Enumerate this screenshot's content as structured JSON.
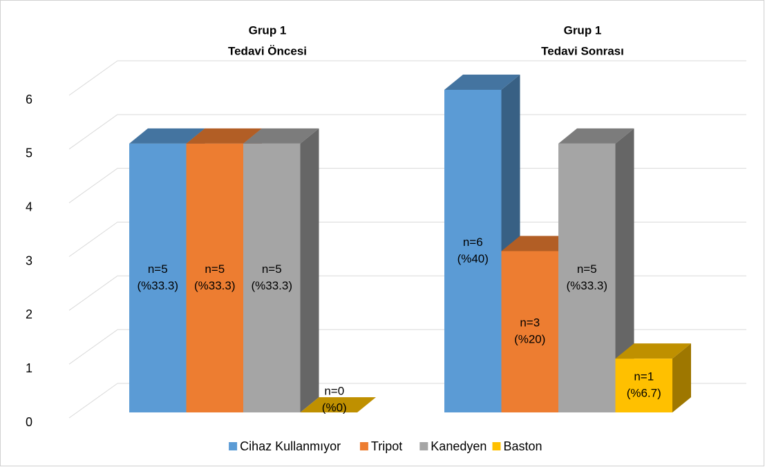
{
  "chart_data": {
    "type": "bar3d",
    "categories": [
      [
        "Grup 1",
        "Tedavi Öncesi"
      ],
      [
        "Grup 1",
        "Tedavi Sonrası"
      ]
    ],
    "series": [
      {
        "name": "Cihaz Kullanmıyor",
        "color": "#5b9bd5",
        "values": [
          5,
          6
        ],
        "value_labels": [
          [
            "n=5",
            "(%33.3)"
          ],
          [
            "n=6",
            "(%40)"
          ]
        ]
      },
      {
        "name": "Tripot",
        "color": "#ed7d31",
        "values": [
          5,
          3
        ],
        "value_labels": [
          [
            "n=5",
            "(%33.3)"
          ],
          [
            "n=3",
            "(%20)"
          ]
        ]
      },
      {
        "name": "Kanedyen",
        "color": "#a5a5a5",
        "values": [
          5,
          5
        ],
        "value_labels": [
          [
            "n=5",
            "(%33.3)"
          ],
          [
            "n=5",
            "(%33.3)"
          ]
        ]
      },
      {
        "name": "Baston",
        "color": "#ffc000",
        "values": [
          0,
          1
        ],
        "value_labels": [
          [
            "n=0",
            "(%0)"
          ],
          [
            "n=1",
            "(%6.7)"
          ]
        ]
      }
    ],
    "ylim": [
      0,
      6
    ],
    "yticks": [
      0,
      1,
      2,
      3,
      4,
      5,
      6
    ],
    "grid": true,
    "legend": "bottom"
  }
}
